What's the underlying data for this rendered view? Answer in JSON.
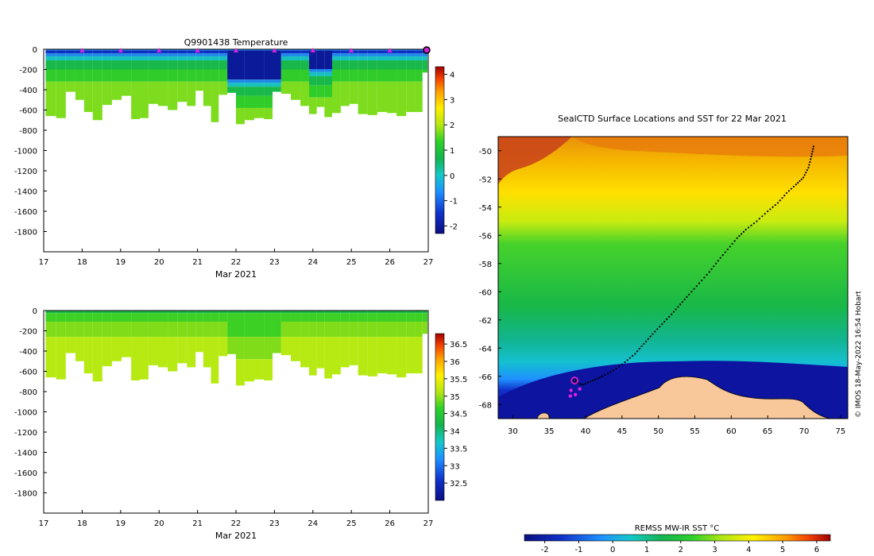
{
  "chart_data": [
    {
      "type": "heatmap",
      "title": "Q9901438  Temperature",
      "xlabel": "Mar 2021",
      "ylabel": "",
      "x_ticks": [
        "17",
        "18",
        "19",
        "20",
        "21",
        "22",
        "23",
        "24",
        "25",
        "26",
        "27"
      ],
      "xlim": [
        17,
        27
      ],
      "y_ticks": [
        "0",
        "-200",
        "-400",
        "-600",
        "-800",
        "-1000",
        "-1200",
        "-1400",
        "-1600",
        "-1800"
      ],
      "ylim": [
        -2000,
        0
      ],
      "colorbar_ticks": [
        "4",
        "3",
        "2",
        "1",
        "0",
        "-1",
        "-2"
      ],
      "colorbar_range": [
        -2.3,
        4.3
      ],
      "surface_markers": [
        18,
        19,
        20,
        21,
        22,
        23,
        24,
        25,
        26
      ],
      "latest_profile": 27,
      "profile_depths": [
        [
          17.2,
          -660
        ],
        [
          17.45,
          -680
        ],
        [
          17.7,
          -420
        ],
        [
          17.95,
          -500
        ],
        [
          18.15,
          -620
        ],
        [
          18.4,
          -700
        ],
        [
          18.65,
          -550
        ],
        [
          18.9,
          -500
        ],
        [
          19.15,
          -460
        ],
        [
          19.4,
          -690
        ],
        [
          19.6,
          -680
        ],
        [
          19.85,
          -540
        ],
        [
          20.1,
          -560
        ],
        [
          20.35,
          -600
        ],
        [
          20.6,
          -520
        ],
        [
          20.85,
          -560
        ],
        [
          21.05,
          -410
        ],
        [
          21.25,
          -560
        ],
        [
          21.45,
          -720
        ],
        [
          21.65,
          -450
        ],
        [
          21.9,
          -430
        ],
        [
          22.1,
          -740
        ],
        [
          22.35,
          -700
        ],
        [
          22.6,
          -680
        ],
        [
          22.85,
          -690
        ],
        [
          23.05,
          -420
        ],
        [
          23.3,
          -440
        ],
        [
          23.55,
          -500
        ],
        [
          23.8,
          -560
        ],
        [
          24.0,
          -640
        ],
        [
          24.2,
          -570
        ],
        [
          24.4,
          -670
        ],
        [
          24.6,
          -630
        ],
        [
          24.85,
          -560
        ],
        [
          25.05,
          -540
        ],
        [
          25.3,
          -640
        ],
        [
          25.55,
          -650
        ],
        [
          25.8,
          -620
        ],
        [
          26.05,
          -630
        ],
        [
          26.3,
          -660
        ],
        [
          26.55,
          -620
        ],
        [
          26.75,
          -620
        ],
        [
          26.95,
          -230
        ]
      ]
    },
    {
      "type": "heatmap",
      "title": "",
      "xlabel": "Mar 2021",
      "ylabel": "",
      "x_ticks": [
        "17",
        "18",
        "19",
        "20",
        "21",
        "22",
        "23",
        "24",
        "25",
        "26",
        "27"
      ],
      "xlim": [
        17,
        27
      ],
      "y_ticks": [
        "0",
        "-200",
        "-400",
        "-600",
        "-800",
        "-1000",
        "-1200",
        "-1400",
        "-1600",
        "-1800"
      ],
      "ylim": [
        -2000,
        0
      ],
      "colorbar_ticks": [
        "36.5",
        "36",
        "35.5",
        "35",
        "34.5",
        "34",
        "33.5",
        "33",
        "32.5"
      ],
      "colorbar_range": [
        32.0,
        36.8
      ]
    },
    {
      "type": "heatmap",
      "title": "SealCTD Surface Locations and SST for 22 Mar 2021",
      "x_ticks": [
        "30",
        "35",
        "40",
        "45",
        "50",
        "55",
        "60",
        "65",
        "70",
        "75"
      ],
      "xlim": [
        28,
        76
      ],
      "y_ticks": [
        "-50",
        "-52",
        "-54",
        "-56",
        "-58",
        "-60",
        "-62",
        "-64",
        "-66",
        "-68"
      ],
      "ylim": [
        -69,
        -49
      ],
      "colorbar_label": "REMSS MW-IR SST °C",
      "colorbar_ticks": [
        "-2",
        "-1",
        "0",
        "1",
        "2",
        "3",
        "4",
        "5",
        "6"
      ],
      "colorbar_range": [
        -2.6,
        6.4
      ],
      "track_lonlat": [
        [
          71.3,
          -49.7
        ],
        [
          71.0,
          -50.4
        ],
        [
          70.6,
          -51.2
        ],
        [
          69.9,
          -51.9
        ],
        [
          68.9,
          -52.4
        ],
        [
          67.6,
          -53.0
        ],
        [
          66.4,
          -53.7
        ],
        [
          65.0,
          -54.3
        ],
        [
          63.5,
          -55.0
        ],
        [
          62.0,
          -55.6
        ],
        [
          60.8,
          -56.2
        ],
        [
          59.5,
          -57.0
        ],
        [
          58.2,
          -57.8
        ],
        [
          57.0,
          -58.6
        ],
        [
          55.6,
          -59.4
        ],
        [
          54.2,
          -60.2
        ],
        [
          53.0,
          -60.9
        ],
        [
          51.8,
          -61.6
        ],
        [
          50.5,
          -62.3
        ],
        [
          49.2,
          -63.0
        ],
        [
          48.0,
          -63.7
        ],
        [
          46.8,
          -64.4
        ],
        [
          45.4,
          -65.0
        ],
        [
          43.8,
          -65.6
        ],
        [
          42.3,
          -66.0
        ],
        [
          41.0,
          -66.3
        ],
        [
          39.6,
          -66.6
        ],
        [
          38.4,
          -66.4
        ]
      ],
      "recent_positions": [
        [
          38.0,
          -67.0
        ],
        [
          37.9,
          -67.4
        ],
        [
          38.6,
          -67.3
        ],
        [
          39.2,
          -66.9
        ]
      ],
      "current_position": [
        38.5,
        -66.3
      ]
    }
  ],
  "credit": "© IMOS 18-May-2022 16:54 Hobart"
}
